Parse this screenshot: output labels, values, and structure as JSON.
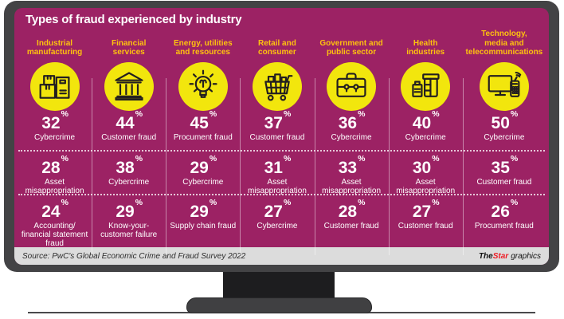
{
  "title": "Types of fraud experienced by industry",
  "source_bar": {
    "source": "Source: PwC's Global Economic Crime and Fraud Survey 2022",
    "credit_the": "The",
    "credit_star": "Star",
    "credit_graphics": "graphics"
  },
  "colors": {
    "screen_magenta": "#9C2264",
    "header_yellow": "#FFC20E",
    "circle_yellow": "#F2E60D",
    "bezel_gray": "#434345",
    "star_red": "#EE1C25",
    "source_bar_bg": "#DCDCDC",
    "text_white": "#FFFFFF"
  },
  "chart_data": {
    "type": "table",
    "title": "Types of fraud experienced by industry",
    "unit": "%",
    "columns": [
      {
        "industry": "Industrial\nmanufacturing",
        "icon": "boxes-icon",
        "stats": [
          {
            "value": 32,
            "label": "Cybercrime"
          },
          {
            "value": 28,
            "label": "Asset\nmisappropriation"
          },
          {
            "value": 24,
            "label": "Accounting/\nfinancial statement\nfraud"
          }
        ]
      },
      {
        "industry": "Financial\nservices",
        "icon": "bank-icon",
        "stats": [
          {
            "value": 44,
            "label": "Customer fraud"
          },
          {
            "value": 38,
            "label": "Cybercrime"
          },
          {
            "value": 29,
            "label": "Know-your-\ncustomer failure"
          }
        ]
      },
      {
        "industry": "Energy, utilities\nand resources",
        "icon": "lightbulb-icon",
        "stats": [
          {
            "value": 45,
            "label": "Procument fraud"
          },
          {
            "value": 29,
            "label": "Cybercrime"
          },
          {
            "value": 29,
            "label": "Supply chain fraud"
          }
        ]
      },
      {
        "industry": "Retail and\nconsumer",
        "icon": "shopping-cart-icon",
        "stats": [
          {
            "value": 37,
            "label": "Customer fraud"
          },
          {
            "value": 31,
            "label": "Asset\nmisappropriation"
          },
          {
            "value": 27,
            "label": "Cybercrime"
          }
        ]
      },
      {
        "industry": "Government and\npublic sector",
        "icon": "briefcase-icon",
        "stats": [
          {
            "value": 36,
            "label": "Cybercrime"
          },
          {
            "value": 33,
            "label": "Asset\nmisappropriation"
          },
          {
            "value": 28,
            "label": "Customer fraud"
          }
        ]
      },
      {
        "industry": "Health\nindustries",
        "icon": "medicine-bottles-icon",
        "stats": [
          {
            "value": 40,
            "label": "Cybercrime"
          },
          {
            "value": 30,
            "label": "Asset\nmisappropriation"
          },
          {
            "value": 27,
            "label": "Customer fraud"
          }
        ]
      },
      {
        "industry": "Technology,\nmedia and\ntelecommunications",
        "icon": "monitor-phone-icon",
        "stats": [
          {
            "value": 50,
            "label": "Cybercrime"
          },
          {
            "value": 35,
            "label": "Customer fraud"
          },
          {
            "value": 26,
            "label": "Procument fraud"
          }
        ]
      }
    ]
  }
}
